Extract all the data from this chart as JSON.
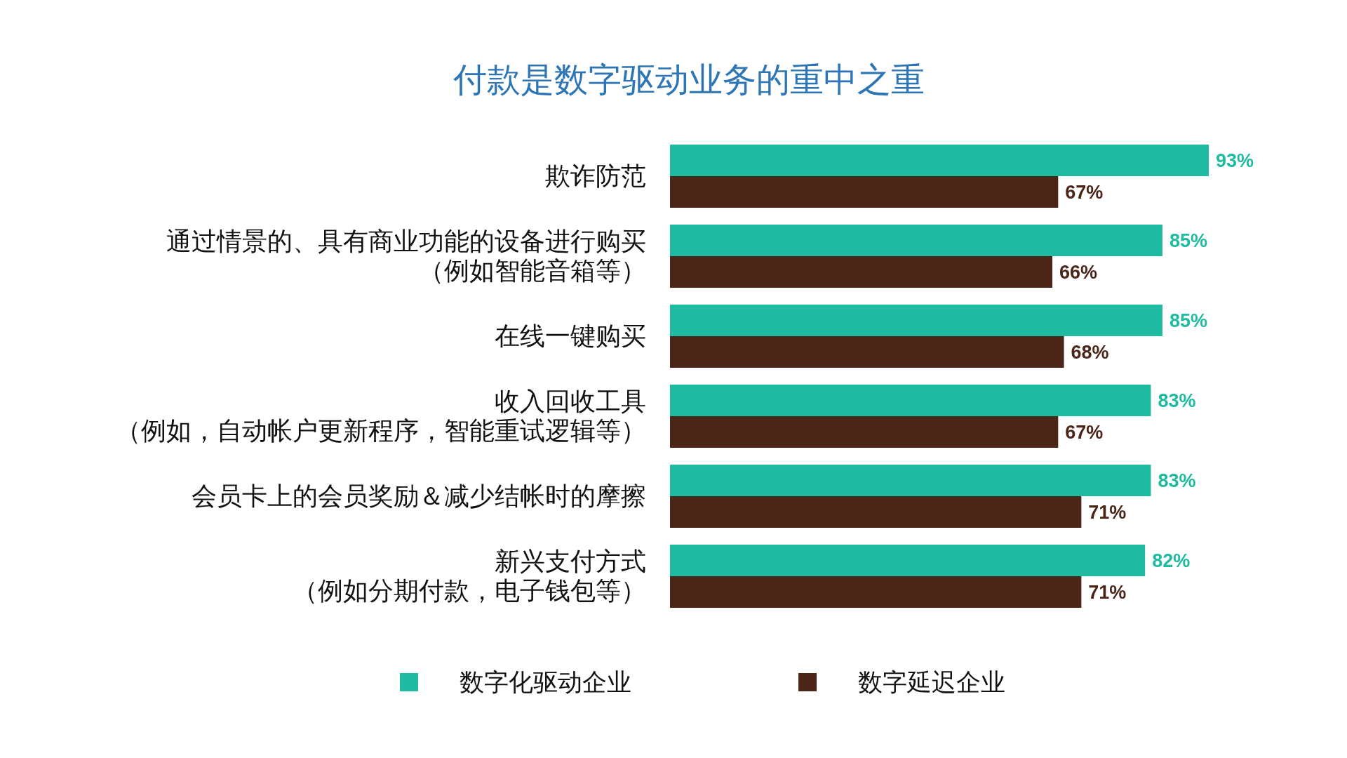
{
  "chart_data": {
    "type": "bar",
    "orientation": "horizontal",
    "title": "付款是数字驱动业务的重中之重",
    "categories": [
      "欺诈防范",
      "通过情景的、具有商业功能的设备进行购买（例如智能音箱等）",
      "在线一键购买",
      "收入回收工具（例如，自动帐户更新程序，智能重试逻辑等）",
      "会员卡上的会员奖励＆减少结帐时的摩擦",
      "新兴支付方式（例如分期付款，电子钱包等）"
    ],
    "series": [
      {
        "name": "数字化驱动企业",
        "color": "#1fbba0",
        "values": [
          93,
          85,
          85,
          83,
          83,
          82
        ],
        "value_labels": [
          "93%",
          "85%",
          "85%",
          "83%",
          "83%",
          "82%"
        ]
      },
      {
        "name": "数字延迟企业",
        "color": "#4a2518",
        "values": [
          67,
          66,
          68,
          67,
          71,
          71
        ],
        "value_labels": [
          "67%",
          "66%",
          "68%",
          "67%",
          "71%",
          "71%"
        ]
      }
    ],
    "legend": "bottom"
  }
}
